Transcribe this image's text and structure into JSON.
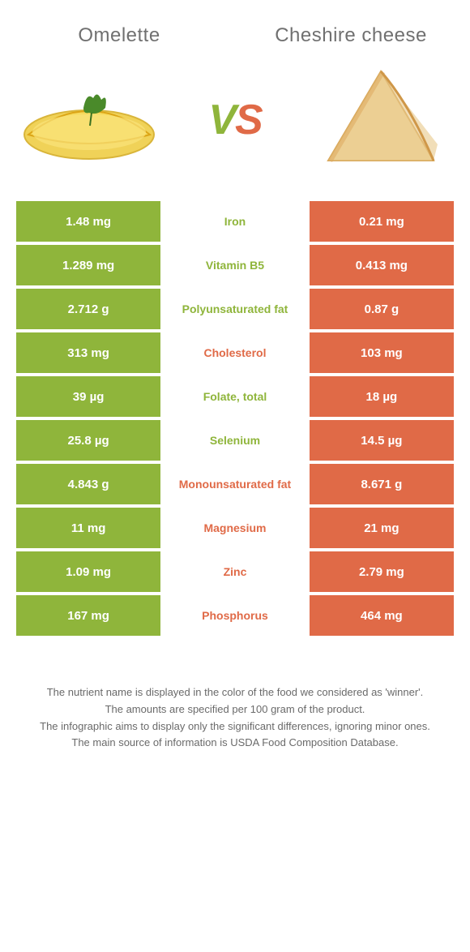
{
  "header": {
    "left_title": "Omelette",
    "right_title": "Cheshire cheese"
  },
  "vs": {
    "text_v": "V",
    "text_s": "S"
  },
  "colors": {
    "left": "#8fb53b",
    "right": "#e06a47",
    "row_gap": "#ffffff",
    "text_white": "#ffffff"
  },
  "table": {
    "rows": [
      {
        "left": "1.48 mg",
        "label": "Iron",
        "right": "0.21 mg",
        "winner": "left"
      },
      {
        "left": "1.289 mg",
        "label": "Vitamin B5",
        "right": "0.413 mg",
        "winner": "left"
      },
      {
        "left": "2.712 g",
        "label": "Polyunsaturated fat",
        "right": "0.87 g",
        "winner": "left"
      },
      {
        "left": "313 mg",
        "label": "Cholesterol",
        "right": "103 mg",
        "winner": "right"
      },
      {
        "left": "39 µg",
        "label": "Folate, total",
        "right": "18 µg",
        "winner": "left"
      },
      {
        "left": "25.8 µg",
        "label": "Selenium",
        "right": "14.5 µg",
        "winner": "left"
      },
      {
        "left": "4.843 g",
        "label": "Monounsaturated fat",
        "right": "8.671 g",
        "winner": "right"
      },
      {
        "left": "11 mg",
        "label": "Magnesium",
        "right": "21 mg",
        "winner": "right"
      },
      {
        "left": "1.09 mg",
        "label": "Zinc",
        "right": "2.79 mg",
        "winner": "right"
      },
      {
        "left": "167 mg",
        "label": "Phosphorus",
        "right": "464 mg",
        "winner": "right"
      }
    ]
  },
  "footer": {
    "line1": "The nutrient name is displayed in the color of the food we considered as 'winner'.",
    "line2": "The amounts are specified per 100 gram of the product.",
    "line3": "The infographic aims to display only the significant differences, ignoring minor ones.",
    "line4": "The main source of information is USDA Food Composition Database."
  }
}
